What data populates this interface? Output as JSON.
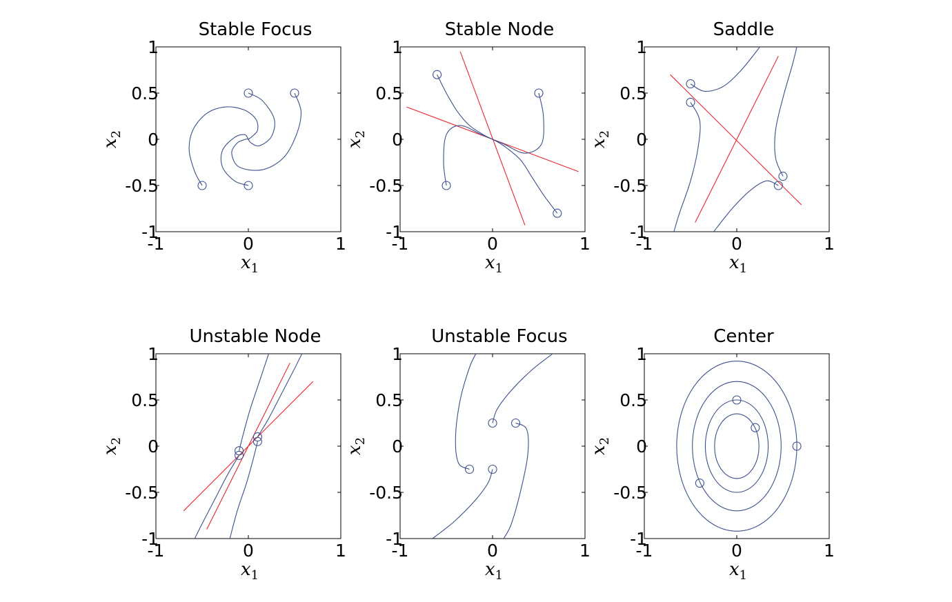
{
  "figure": {
    "colors": {
      "trajectory": "#3b4f8f",
      "eigenvector": "#e8262a",
      "axes": "#000000"
    }
  },
  "chart_data": [
    {
      "type": "line",
      "title": "Stable Focus",
      "xlabel": "x",
      "xlabel_sub": "1",
      "ylabel": "x",
      "ylabel_sub": "2",
      "xlim": [
        -1,
        1
      ],
      "ylim": [
        -1,
        1
      ],
      "xticks": [
        -1,
        0,
        1
      ],
      "yticks": [
        -1,
        -0.5,
        0,
        0.5,
        1
      ],
      "xtick_labels": [
        "-1",
        "0",
        "1"
      ],
      "ytick_labels": [
        "-1",
        "-0.5",
        "0",
        "0.5",
        "1"
      ],
      "grid": false,
      "series": [
        {
          "role": "trajectory",
          "start": [
            -0.5,
            -0.5
          ],
          "points": [
            [
              -0.5,
              -0.5
            ],
            [
              -0.58,
              -0.35
            ],
            [
              -0.64,
              -0.12
            ],
            [
              -0.6,
              0.1
            ],
            [
              -0.45,
              0.28
            ],
            [
              -0.25,
              0.35
            ],
            [
              -0.05,
              0.32
            ],
            [
              0.08,
              0.22
            ],
            [
              0.1,
              0.1
            ],
            [
              0.04,
              0.03
            ],
            [
              0.0,
              0.0
            ]
          ]
        },
        {
          "role": "trajectory",
          "start": [
            0.0,
            -0.5
          ],
          "points": [
            [
              0.0,
              -0.5
            ],
            [
              -0.15,
              -0.45
            ],
            [
              -0.28,
              -0.3
            ],
            [
              -0.28,
              -0.12
            ],
            [
              -0.15,
              0.02
            ],
            [
              -0.04,
              0.05
            ],
            [
              0.0,
              0.0
            ]
          ]
        },
        {
          "role": "trajectory",
          "start": [
            0.0,
            0.5
          ],
          "points": [
            [
              0.0,
              0.5
            ],
            [
              0.15,
              0.42
            ],
            [
              0.28,
              0.22
            ],
            [
              0.25,
              0.03
            ],
            [
              0.12,
              -0.07
            ],
            [
              0.03,
              -0.04
            ],
            [
              0.0,
              0.0
            ]
          ]
        },
        {
          "role": "trajectory",
          "start": [
            0.5,
            0.5
          ],
          "points": [
            [
              0.5,
              0.5
            ],
            [
              0.57,
              0.3
            ],
            [
              0.52,
              0.05
            ],
            [
              0.38,
              -0.2
            ],
            [
              0.15,
              -0.33
            ],
            [
              -0.1,
              -0.3
            ],
            [
              -0.18,
              -0.15
            ],
            [
              -0.12,
              -0.04
            ],
            [
              -0.03,
              0.0
            ],
            [
              0.0,
              0.0
            ]
          ]
        }
      ]
    },
    {
      "type": "line",
      "title": "Stable Node",
      "xlabel": "x",
      "xlabel_sub": "1",
      "ylabel": "x",
      "ylabel_sub": "2",
      "xlim": [
        -1,
        1
      ],
      "ylim": [
        -1,
        1
      ],
      "xticks": [
        -1,
        0,
        1
      ],
      "yticks": [
        -1,
        -0.5,
        0,
        0.5,
        1
      ],
      "xtick_labels": [
        "-1",
        "0",
        "1"
      ],
      "ytick_labels": [
        "-1",
        "-0.5",
        "0",
        "0.5",
        "1"
      ],
      "grid": false,
      "eigenvectors": [
        {
          "points": [
            [
              -0.93,
              0.35
            ],
            [
              0.93,
              -0.35
            ]
          ]
        },
        {
          "points": [
            [
              -0.35,
              0.95
            ],
            [
              0.35,
              -0.93
            ]
          ]
        }
      ],
      "series": [
        {
          "role": "trajectory",
          "start": [
            -0.6,
            0.7
          ],
          "points": [
            [
              -0.6,
              0.7
            ],
            [
              -0.5,
              0.5
            ],
            [
              -0.38,
              0.3
            ],
            [
              -0.25,
              0.15
            ],
            [
              -0.1,
              0.05
            ],
            [
              0.0,
              0.0
            ]
          ]
        },
        {
          "role": "trajectory",
          "start": [
            -0.5,
            -0.5
          ],
          "points": [
            [
              -0.5,
              -0.5
            ],
            [
              -0.53,
              -0.25
            ],
            [
              -0.5,
              0.05
            ],
            [
              -0.35,
              0.15
            ],
            [
              -0.12,
              0.05
            ],
            [
              0.0,
              0.0
            ]
          ]
        },
        {
          "role": "trajectory",
          "start": [
            0.5,
            0.5
          ],
          "points": [
            [
              0.5,
              0.5
            ],
            [
              0.55,
              0.25
            ],
            [
              0.53,
              -0.05
            ],
            [
              0.35,
              -0.15
            ],
            [
              0.12,
              -0.05
            ],
            [
              0.0,
              0.0
            ]
          ]
        },
        {
          "role": "trajectory",
          "start": [
            0.7,
            -0.8
          ],
          "points": [
            [
              0.7,
              -0.8
            ],
            [
              0.55,
              -0.6
            ],
            [
              0.42,
              -0.4
            ],
            [
              0.3,
              -0.22
            ],
            [
              0.12,
              -0.07
            ],
            [
              0.0,
              0.0
            ]
          ]
        }
      ]
    },
    {
      "type": "line",
      "title": "Saddle",
      "xlabel": "x",
      "xlabel_sub": "1",
      "ylabel": "x",
      "ylabel_sub": "2",
      "xlim": [
        -1,
        1
      ],
      "ylim": [
        -1,
        1
      ],
      "xticks": [
        -1,
        0,
        1
      ],
      "yticks": [
        -1,
        -0.5,
        0,
        0.5,
        1
      ],
      "xtick_labels": [
        "-1",
        "0",
        "1"
      ],
      "ytick_labels": [
        "-1",
        "-0.5",
        "0",
        "0.5",
        "1"
      ],
      "grid": false,
      "eigenvectors": [
        {
          "points": [
            [
              -0.72,
              0.7
            ],
            [
              0.7,
              -0.71
            ]
          ]
        },
        {
          "points": [
            [
              -0.45,
              -0.9
            ],
            [
              0.45,
              0.9
            ]
          ]
        }
      ],
      "series": [
        {
          "role": "trajectory",
          "start": [
            -0.5,
            0.6
          ],
          "points": [
            [
              -0.5,
              0.6
            ],
            [
              -0.35,
              0.52
            ],
            [
              -0.15,
              0.57
            ],
            [
              0.05,
              0.75
            ],
            [
              0.25,
              1.0
            ]
          ]
        },
        {
          "role": "trajectory",
          "start": [
            -0.5,
            0.4
          ],
          "points": [
            [
              -0.5,
              0.4
            ],
            [
              -0.4,
              0.2
            ],
            [
              -0.42,
              -0.1
            ],
            [
              -0.5,
              -0.45
            ],
            [
              -0.62,
              -0.8
            ],
            [
              -0.68,
              -1.0
            ]
          ]
        },
        {
          "role": "trajectory",
          "start": [
            0.5,
            -0.4
          ],
          "points": [
            [
              0.5,
              -0.4
            ],
            [
              0.42,
              -0.2
            ],
            [
              0.42,
              0.1
            ],
            [
              0.5,
              0.45
            ],
            [
              0.6,
              0.8
            ],
            [
              0.65,
              1.0
            ]
          ]
        },
        {
          "role": "trajectory",
          "start": [
            0.45,
            -0.5
          ],
          "points": [
            [
              0.45,
              -0.5
            ],
            [
              0.32,
              -0.45
            ],
            [
              0.15,
              -0.55
            ],
            [
              -0.05,
              -0.75
            ],
            [
              -0.25,
              -1.0
            ]
          ]
        }
      ]
    },
    {
      "type": "line",
      "title": "Unstable Node",
      "xlabel": "x",
      "xlabel_sub": "1",
      "ylabel": "x",
      "ylabel_sub": "2",
      "xlim": [
        -1,
        1
      ],
      "ylim": [
        -1,
        1
      ],
      "xticks": [
        -1,
        0,
        1
      ],
      "yticks": [
        -1,
        -0.5,
        0,
        0.5,
        1
      ],
      "xtick_labels": [
        "-1",
        "0",
        "1"
      ],
      "ytick_labels": [
        "-1",
        "-0.5",
        "0",
        "0.5",
        "1"
      ],
      "grid": false,
      "eigenvectors": [
        {
          "points": [
            [
              -0.7,
              -0.7
            ],
            [
              0.7,
              0.7
            ]
          ]
        },
        {
          "points": [
            [
              -0.45,
              -0.9
            ],
            [
              0.45,
              0.9
            ]
          ]
        }
      ],
      "series": [
        {
          "role": "trajectory",
          "start": [
            -0.1,
            -0.05
          ],
          "points": [
            [
              -0.1,
              -0.05
            ],
            [
              -0.05,
              0.15
            ],
            [
              0.02,
              0.4
            ],
            [
              0.12,
              0.7
            ],
            [
              0.22,
              1.0
            ]
          ]
        },
        {
          "role": "trajectory",
          "start": [
            -0.1,
            -0.1
          ],
          "points": [
            [
              -0.1,
              -0.1
            ],
            [
              -0.22,
              -0.3
            ],
            [
              -0.35,
              -0.55
            ],
            [
              -0.48,
              -0.8
            ],
            [
              -0.58,
              -1.0
            ]
          ]
        },
        {
          "role": "trajectory",
          "start": [
            0.1,
            0.1
          ],
          "points": [
            [
              0.1,
              0.1
            ],
            [
              0.22,
              0.3
            ],
            [
              0.35,
              0.55
            ],
            [
              0.48,
              0.8
            ],
            [
              0.58,
              1.0
            ]
          ]
        },
        {
          "role": "trajectory",
          "start": [
            0.1,
            0.05
          ],
          "points": [
            [
              0.1,
              0.05
            ],
            [
              0.05,
              -0.15
            ],
            [
              -0.02,
              -0.4
            ],
            [
              -0.12,
              -0.7
            ],
            [
              -0.2,
              -1.0
            ]
          ]
        }
      ]
    },
    {
      "type": "line",
      "title": "Unstable Focus",
      "xlabel": "x",
      "xlabel_sub": "1",
      "ylabel": "x",
      "ylabel_sub": "2",
      "xlim": [
        -1,
        1
      ],
      "ylim": [
        -1,
        1
      ],
      "xticks": [
        -1,
        0,
        1
      ],
      "yticks": [
        -1,
        -0.5,
        0,
        0.5,
        1
      ],
      "xtick_labels": [
        "-1",
        "0",
        "1"
      ],
      "ytick_labels": [
        "-1",
        "-0.5",
        "0",
        "0.5",
        "1"
      ],
      "grid": false,
      "series": [
        {
          "role": "trajectory",
          "start": [
            -0.25,
            -0.25
          ],
          "points": [
            [
              -0.25,
              -0.25
            ],
            [
              -0.37,
              -0.18
            ],
            [
              -0.4,
              0.1
            ],
            [
              -0.35,
              0.5
            ],
            [
              -0.25,
              0.85
            ],
            [
              -0.18,
              1.0
            ]
          ]
        },
        {
          "role": "trajectory",
          "start": [
            0.0,
            0.25
          ],
          "points": [
            [
              0.0,
              0.25
            ],
            [
              0.05,
              0.4
            ],
            [
              0.2,
              0.6
            ],
            [
              0.42,
              0.82
            ],
            [
              0.65,
              1.0
            ]
          ]
        },
        {
          "role": "trajectory",
          "start": [
            0.0,
            -0.25
          ],
          "points": [
            [
              0.0,
              -0.25
            ],
            [
              -0.05,
              -0.4
            ],
            [
              -0.2,
              -0.6
            ],
            [
              -0.42,
              -0.82
            ],
            [
              -0.65,
              -1.0
            ]
          ]
        },
        {
          "role": "trajectory",
          "start": [
            0.25,
            0.25
          ],
          "points": [
            [
              0.25,
              0.25
            ],
            [
              0.37,
              0.18
            ],
            [
              0.38,
              -0.1
            ],
            [
              0.3,
              -0.5
            ],
            [
              0.2,
              -0.85
            ],
            [
              0.12,
              -1.0
            ]
          ]
        }
      ]
    },
    {
      "type": "line",
      "title": "Center",
      "xlabel": "x",
      "xlabel_sub": "1",
      "ylabel": "x",
      "ylabel_sub": "2",
      "xlim": [
        -1,
        1
      ],
      "ylim": [
        -1,
        1
      ],
      "xticks": [
        -1,
        0,
        1
      ],
      "yticks": [
        -1,
        -0.5,
        0,
        0.5,
        1
      ],
      "xtick_labels": [
        "-1",
        "0",
        "1"
      ],
      "ytick_labels": [
        "-1",
        "-0.5",
        "0",
        "0.5",
        "1"
      ],
      "grid": false,
      "series": [
        {
          "role": "orbit",
          "center": [
            0,
            0
          ],
          "radii": [
            0.24,
            0.35
          ],
          "start": [
            0.2,
            0.2
          ]
        },
        {
          "role": "orbit",
          "center": [
            0,
            0
          ],
          "radii": [
            0.34,
            0.5
          ],
          "start": [
            0.0,
            0.5
          ]
        },
        {
          "role": "orbit",
          "center": [
            0,
            0
          ],
          "radii": [
            0.48,
            0.7
          ],
          "start": [
            -0.4,
            -0.4
          ]
        },
        {
          "role": "orbit",
          "center": [
            0,
            0
          ],
          "radii": [
            0.65,
            0.92
          ],
          "start": [
            0.65,
            0.0
          ]
        }
      ]
    }
  ]
}
